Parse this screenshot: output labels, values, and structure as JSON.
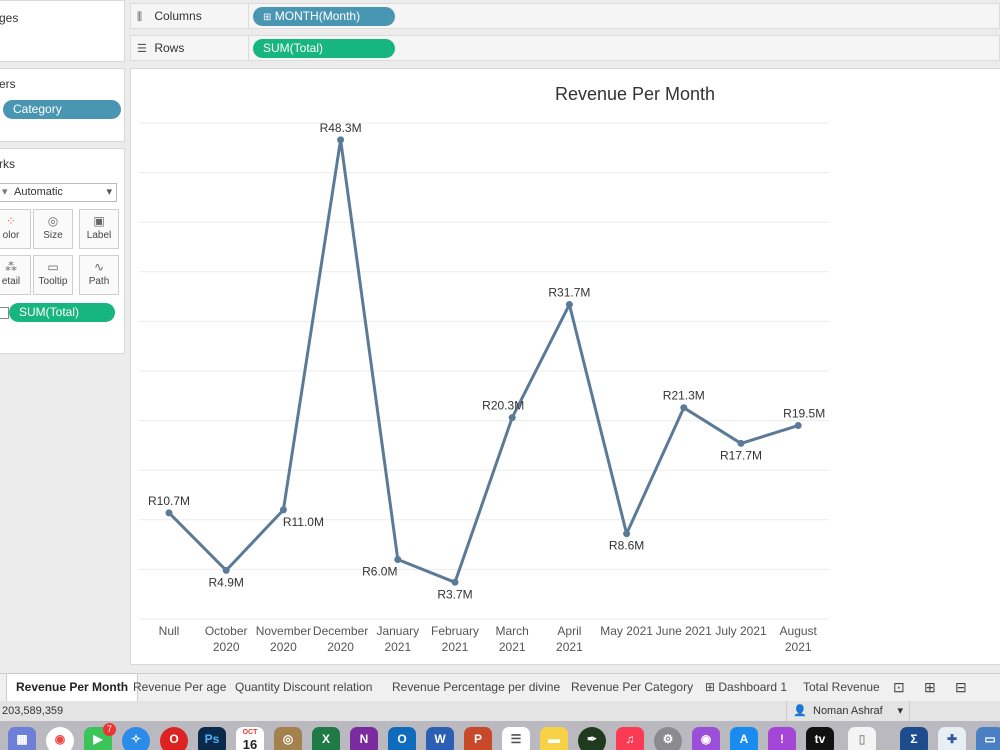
{
  "left_panels": {
    "pages_title": "ges",
    "filters_title": "ers",
    "filter_pill": "Category",
    "marks_title": "rks",
    "mark_type": "Automatic",
    "mark_buttons": [
      "olor",
      "Size",
      "Label",
      "etail",
      "Tooltip",
      "Path"
    ],
    "mark_pill": "SUM(Total)"
  },
  "shelves": {
    "columns_label": "Columns",
    "columns_pill": "MONTH(Month)",
    "rows_label": "Rows",
    "rows_pill": "SUM(Total)"
  },
  "chart_data": {
    "type": "line",
    "title": "Revenue Per Month",
    "categories": [
      "Null",
      "October 2020",
      "November 2020",
      "December 2020",
      "January 2021",
      "February 2021",
      "March 2021",
      "April 2021",
      "May 2021",
      "June 2021",
      "July 2021",
      "August 2021"
    ],
    "category_lines": [
      [
        "Null"
      ],
      [
        "October",
        "2020"
      ],
      [
        "November",
        "2020"
      ],
      [
        "December",
        "2020"
      ],
      [
        "January",
        "2021"
      ],
      [
        "February",
        "2021"
      ],
      [
        "March",
        "2021"
      ],
      [
        "April",
        "2021"
      ],
      [
        "May 2021"
      ],
      [
        "June 2021"
      ],
      [
        "July 2021"
      ],
      [
        "August",
        "2021"
      ]
    ],
    "values": [
      10.7,
      4.9,
      11.0,
      48.3,
      6.0,
      3.7,
      20.3,
      31.7,
      8.6,
      21.3,
      17.7,
      19.5
    ],
    "labels": [
      "R10.7M",
      "R4.9M",
      "R11.0M",
      "R48.3M",
      "R6.0M",
      "R3.7M",
      "R20.3M",
      "R31.7M",
      "R8.6M",
      "R21.3M",
      "R17.7M",
      "R19.5M"
    ],
    "ylim": [
      0,
      50
    ],
    "grid": true,
    "line_color": "#5a7a98"
  },
  "tabs": [
    {
      "label": "Revenue Per Month",
      "active": true
    },
    {
      "label": "Revenue Per age",
      "active": false
    },
    {
      "label": "Quantity Discount relation",
      "active": false
    },
    {
      "label": "Revenue Percentage per divine",
      "active": false
    },
    {
      "label": "Revenue Per Category",
      "active": false
    },
    {
      "label": "Dashboard 1",
      "active": false
    },
    {
      "label": "Total Revenue",
      "active": false
    }
  ],
  "status": {
    "total": "203,589,359",
    "user": "Noman Ashraf"
  },
  "dock": {
    "calendar_month": "OCT",
    "calendar_day": "16",
    "facetime_badge": "7",
    "apps": [
      "launchpad-icon",
      "chrome-icon",
      "facetime-icon",
      "safari-icon",
      "opera-icon",
      "photoshop-icon",
      "calendar-icon",
      "notes-app-icon",
      "excel-icon",
      "onenote-icon",
      "outlook-icon",
      "word-icon",
      "powerpoint-icon",
      "reminders-icon",
      "notes-icon",
      "pen-icon",
      "music-icon",
      "settings-icon",
      "podcasts-icon",
      "appstore-icon",
      "feedback-icon",
      "appletv-icon",
      "document-icon",
      "sigma-icon",
      "tableau-icon",
      "preview-icon"
    ],
    "letters": {
      "photoshop": "Ps",
      "excel": "X",
      "onenote": "N",
      "outlook": "O",
      "word": "W",
      "powerpoint": "P",
      "sigma": "Σ",
      "appletv": "tv"
    }
  }
}
